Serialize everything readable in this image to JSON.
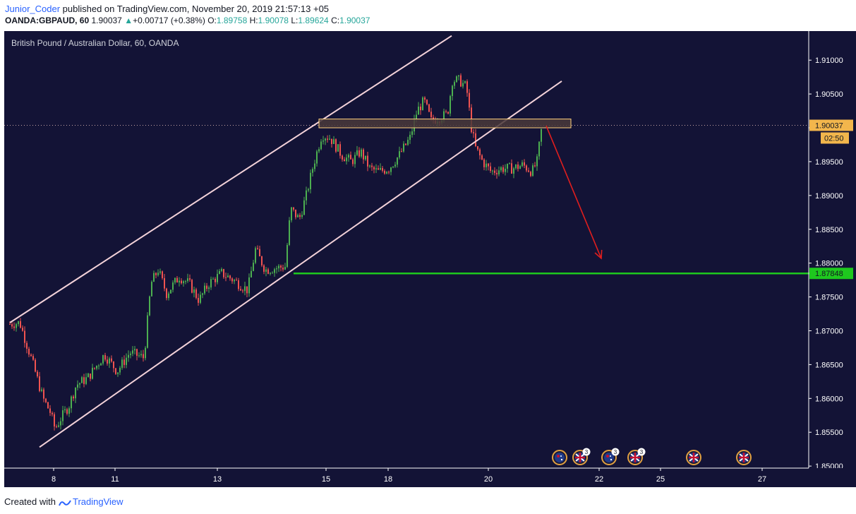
{
  "header": {
    "user": "Junior_Coder",
    "published_text": " published on TradingView.com, November 20, 2019 21:57:13 +05",
    "symbol": "OANDA:GBPAUD, 60",
    "price": "1.90037",
    "change": "+0.00717 (+0.38%)",
    "o_label": "O:",
    "o_value": "1.89758",
    "h_label": "H:",
    "h_value": "1.90078",
    "l_label": "L:",
    "l_value": "1.89624",
    "c_label": "C:",
    "c_value": "1.90037"
  },
  "footer": {
    "created_text": "Created with",
    "brand": "TradingView"
  },
  "colors": {
    "background": "#131336",
    "up_candle": "#4caf50",
    "down_candle": "#ef5350",
    "channel": "#f3d2d9",
    "resistance_fill": "#4a3a3a",
    "resistance_stroke": "#ffd27f",
    "target_line": "#1ec81e",
    "arrow": "#e01e1e",
    "axis_text": "#ffffff"
  },
  "chart_data": {
    "type": "candlestick",
    "title": "British Pound / Australian Dollar, 60, OANDA",
    "ylim": [
      1.8497,
      1.9143
    ],
    "y_ticks": [
      "1.91000",
      "1.90500",
      "1.90000",
      "1.89500",
      "1.89000",
      "1.88500",
      "1.88000",
      "1.87500",
      "1.87000",
      "1.86500",
      "1.86000",
      "1.85500",
      "1.85000"
    ],
    "x_ticks": [
      "8",
      "11",
      "13",
      "15",
      "18",
      "20",
      "22",
      "25",
      "27"
    ],
    "last_price": "1.90037",
    "countdown": "02:50",
    "target_price": "1.87848",
    "price_path": [
      {
        "x": 8,
        "y": 1.871
      },
      {
        "x": 22,
        "y": 1.8712
      },
      {
        "x": 38,
        "y": 1.866
      },
      {
        "x": 55,
        "y": 1.86
      },
      {
        "x": 65,
        "y": 1.858
      },
      {
        "x": 72,
        "y": 1.8555
      },
      {
        "x": 80,
        "y": 1.857
      },
      {
        "x": 92,
        "y": 1.859
      },
      {
        "x": 102,
        "y": 1.862
      },
      {
        "x": 118,
        "y": 1.863
      },
      {
        "x": 132,
        "y": 1.865
      },
      {
        "x": 142,
        "y": 1.8665
      },
      {
        "x": 160,
        "y": 1.864
      },
      {
        "x": 178,
        "y": 1.8668
      },
      {
        "x": 198,
        "y": 1.866
      },
      {
        "x": 208,
        "y": 1.877
      },
      {
        "x": 218,
        "y": 1.879
      },
      {
        "x": 230,
        "y": 1.8755
      },
      {
        "x": 248,
        "y": 1.878
      },
      {
        "x": 262,
        "y": 1.877
      },
      {
        "x": 276,
        "y": 1.8745
      },
      {
        "x": 290,
        "y": 1.877
      },
      {
        "x": 308,
        "y": 1.8785
      },
      {
        "x": 325,
        "y": 1.8775
      },
      {
        "x": 345,
        "y": 1.876
      },
      {
        "x": 356,
        "y": 1.882
      },
      {
        "x": 370,
        "y": 1.879
      },
      {
        "x": 398,
        "y": 1.8795
      },
      {
        "x": 406,
        "y": 1.888
      },
      {
        "x": 418,
        "y": 1.8865
      },
      {
        "x": 428,
        "y": 1.89
      },
      {
        "x": 438,
        "y": 1.8945
      },
      {
        "x": 450,
        "y": 1.899
      },
      {
        "x": 462,
        "y": 1.8985
      },
      {
        "x": 478,
        "y": 1.896
      },
      {
        "x": 492,
        "y": 1.895
      },
      {
        "x": 505,
        "y": 1.8965
      },
      {
        "x": 518,
        "y": 1.894
      },
      {
        "x": 530,
        "y": 1.8935
      },
      {
        "x": 545,
        "y": 1.894
      },
      {
        "x": 560,
        "y": 1.896
      },
      {
        "x": 575,
        "y": 1.8985
      },
      {
        "x": 585,
        "y": 1.9025
      },
      {
        "x": 595,
        "y": 1.904
      },
      {
        "x": 605,
        "y": 1.901
      },
      {
        "x": 615,
        "y": 1.9015
      },
      {
        "x": 628,
        "y": 1.902
      },
      {
        "x": 635,
        "y": 1.907
      },
      {
        "x": 645,
        "y": 1.907
      },
      {
        "x": 655,
        "y": 1.906
      },
      {
        "x": 662,
        "y": 1.9
      },
      {
        "x": 668,
        "y": 1.897
      },
      {
        "x": 678,
        "y": 1.895
      },
      {
        "x": 690,
        "y": 1.8935
      },
      {
        "x": 705,
        "y": 1.894
      },
      {
        "x": 720,
        "y": 1.894
      },
      {
        "x": 735,
        "y": 1.8945
      },
      {
        "x": 748,
        "y": 1.8935
      },
      {
        "x": 755,
        "y": 1.895
      },
      {
        "x": 762,
        "y": 1.9003
      }
    ],
    "drawings": {
      "channel_upper": [
        {
          "x": 8,
          "y": 1.8712
        },
        {
          "x": 634,
          "y": 1.9136
        }
      ],
      "channel_lower": [
        {
          "x": 50,
          "y": 1.8528
        },
        {
          "x": 790,
          "y": 1.9069
        }
      ],
      "resistance_zone": {
        "x1": 446,
        "x2": 803,
        "y_top": 1.9013,
        "y_bottom": 1.9
      },
      "target_line": {
        "x1": 410,
        "x2": 1146,
        "y": 1.87848
      },
      "arrow": {
        "from": {
          "x": 768,
          "y": 1.9003
        },
        "to": {
          "x": 846,
          "y": 1.8807
        }
      }
    },
    "event_icons": [
      {
        "x": 787,
        "flag": "AU",
        "count": ""
      },
      {
        "x": 816,
        "flag": "GB",
        "count": "3"
      },
      {
        "x": 857,
        "flag": "AU",
        "count": "3"
      },
      {
        "x": 894,
        "flag": "GB",
        "count": "3"
      },
      {
        "x": 977,
        "flag": "GB",
        "count": ""
      },
      {
        "x": 1048,
        "flag": "GB",
        "count": ""
      }
    ]
  }
}
